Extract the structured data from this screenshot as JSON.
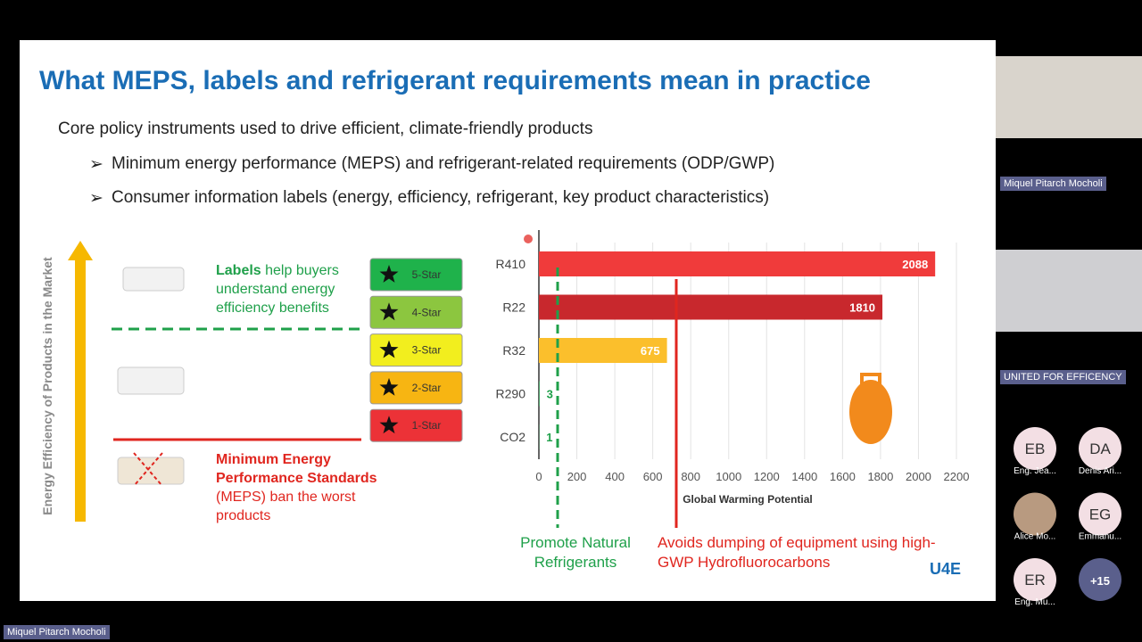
{
  "slide": {
    "title": "What MEPS, labels and refrigerant requirements mean in practice",
    "subtitle": "Core policy instruments used to drive efficient, climate-friendly products",
    "bullets": [
      "Minimum energy performance (MEPS) and refrigerant-related requirements (ODP/GWP)",
      "Consumer information labels (energy, efficiency, refrigerant, key product characteristics)"
    ],
    "axis_label": "Energy Efficiency of Products in the Market",
    "labels_text": {
      "bold": "Labels",
      "rest": " help buyers understand energy efficiency benefits"
    },
    "meps_text": {
      "bold": "Minimum Energy Performance Standards",
      "rest": " (MEPS) ban the worst products"
    },
    "stars": [
      {
        "label": "5-Star",
        "color": "#1fb24b"
      },
      {
        "label": "4-Star",
        "color": "#8cc63f"
      },
      {
        "label": "3-Star",
        "color": "#f2ee1e"
      },
      {
        "label": "2-Star",
        "color": "#f7b512"
      },
      {
        "label": "1-Star",
        "color": "#ec3237"
      }
    ],
    "notes": [
      "Promote Natural Refrigerants",
      "Avoids dumping of equipment using high-GWP Hydrofluorocarbons"
    ],
    "logo": "U4E"
  },
  "chart_data": {
    "type": "bar",
    "orientation": "horizontal",
    "categories": [
      "R410",
      "R22",
      "R32",
      "R290",
      "CO2"
    ],
    "values": [
      2088,
      1810,
      675,
      3,
      1
    ],
    "colors": [
      "#f03b3b",
      "#c8282d",
      "#fbbf2c",
      "#1fa04a",
      "#1fa04a"
    ],
    "xlabel": "Global Warming Potential",
    "xlim": [
      0,
      2200
    ],
    "xticks": [
      0,
      200,
      400,
      600,
      800,
      1000,
      1200,
      1400,
      1600,
      1800,
      2000,
      2200
    ],
    "grid": true
  },
  "participants": {
    "presenter": "Miquel Pitarch Mocholi",
    "organisation": "UNITED FOR EFFICENCY",
    "avatars": [
      {
        "initials": "EB",
        "name": "Eng. Jea..."
      },
      {
        "initials": "DA",
        "name": "Denis Ari..."
      },
      {
        "name": "Alice Mo..."
      },
      {
        "initials": "EG",
        "name": "Emmanu..."
      },
      {
        "initials": "ER",
        "name": "Eng. Mu..."
      },
      {
        "initials": "+15"
      }
    ]
  },
  "footer_tag": "Miquel Pitarch Mocholi"
}
